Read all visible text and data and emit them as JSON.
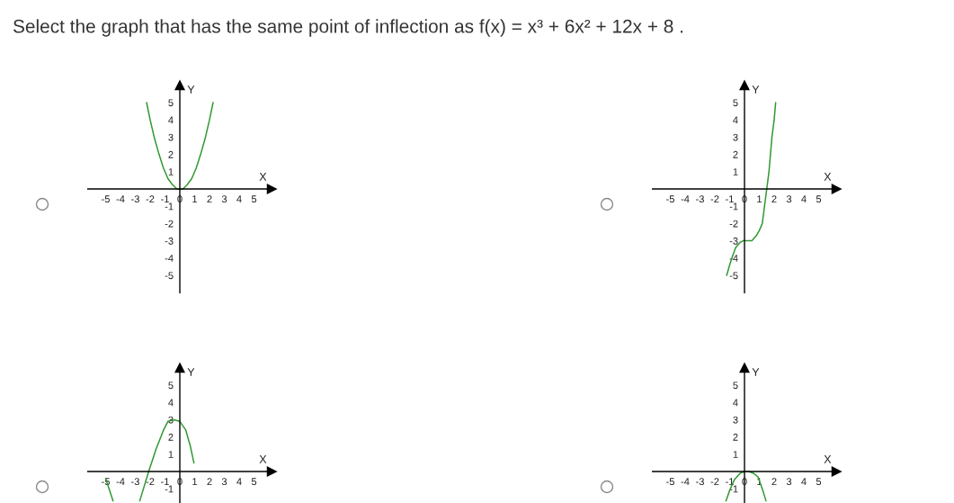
{
  "chart_data": [
    {
      "type": "line",
      "title": "Select the graph that has the same point of inflection as f(x) = x³ + 6x² + 12x + 8 .",
      "xlabel": "X",
      "ylabel": "Y",
      "x": [
        -2.24,
        -2,
        -1.7,
        -1.4,
        -1.1,
        -0.8,
        -0.5,
        -0.2,
        0,
        0.2,
        0.5,
        0.8,
        1.1,
        1.4,
        1.7,
        2,
        2.24
      ],
      "series": [
        {
          "color": "#339933",
          "values": [
            5,
            4,
            2.9,
            2,
            1.2,
            0.6,
            0.25,
            0,
            0,
            0,
            0.25,
            0.6,
            1.2,
            2,
            2.9,
            4,
            5
          ]
        }
      ],
      "xlim": [
        -6.2,
        6.2
      ],
      "ylim": [
        -6,
        6
      ],
      "xticks": [
        -5,
        -4,
        -3,
        -2,
        -1,
        0,
        1,
        2,
        3,
        4,
        5
      ],
      "yticks": [
        -5,
        -4,
        -3,
        -2,
        -1,
        1,
        2,
        3,
        4,
        5
      ]
    },
    {
      "type": "line",
      "xlabel": "X",
      "ylabel": "Y",
      "x": [
        -1.2,
        -1.0,
        -0.85,
        -0.6,
        -0.3,
        -0.1,
        0.2,
        0.5,
        0.8,
        1.0,
        1.2,
        1.35,
        1.5,
        1.65,
        1.75,
        1.85,
        2.0,
        2.1
      ],
      "series": [
        {
          "color": "#339933",
          "values": [
            -5,
            -4.4,
            -4,
            -3.4,
            -3.1,
            -3,
            -3,
            -3,
            -2.7,
            -2.4,
            -2,
            -1,
            0,
            1,
            2,
            3,
            4,
            5
          ]
        }
      ],
      "xlim": [
        -6.2,
        6.2
      ],
      "ylim": [
        -6,
        6
      ],
      "xticks": [
        -5,
        -4,
        -3,
        -2,
        -1,
        0,
        1,
        2,
        3,
        4,
        5
      ],
      "yticks": [
        -5,
        -4,
        -3,
        -2,
        -1,
        1,
        2,
        3,
        4,
        5
      ]
    },
    {
      "type": "line",
      "xlabel": "X",
      "ylabel": "Y",
      "x": [
        -5.0,
        -4.5,
        -3.6,
        -2.7,
        -2.1,
        -1.6,
        -1.1,
        -0.8,
        -0.4,
        0,
        0.4,
        0.7,
        0.95
      ],
      "series": [
        {
          "color": "#339933",
          "values": [
            -0.4,
            -1.7,
            null,
            -1.7,
            0,
            1.3,
            2.4,
            2.9,
            3.0,
            2.9,
            2.4,
            1.5,
            0.5
          ]
        }
      ],
      "xlim": [
        -6.2,
        6.2
      ],
      "ylim": [
        -1.8,
        6
      ],
      "xticks": [
        -5,
        -4,
        -3,
        -2,
        -1,
        0,
        1,
        2,
        3,
        4,
        5
      ],
      "yticks": [
        -1,
        1,
        2,
        3,
        4,
        5
      ]
    },
    {
      "type": "line",
      "xlabel": "X",
      "ylabel": "Y",
      "x": [
        -1.25,
        -1.0,
        -0.7,
        -0.3,
        0,
        0.3,
        0.6,
        0.9,
        1.2,
        1.45
      ],
      "series": [
        {
          "color": "#339933",
          "values": [
            -1.7,
            -1.1,
            -0.5,
            -0.1,
            0,
            0,
            -0.1,
            -0.3,
            -1.0,
            -1.7
          ]
        }
      ],
      "xlim": [
        -6.2,
        6.2
      ],
      "ylim": [
        -1.8,
        6
      ],
      "xticks": [
        -5,
        -4,
        -3,
        -2,
        -1,
        0,
        1,
        2,
        3,
        4,
        5
      ],
      "yticks": [
        -1,
        1,
        2,
        3,
        4,
        5
      ]
    }
  ]
}
